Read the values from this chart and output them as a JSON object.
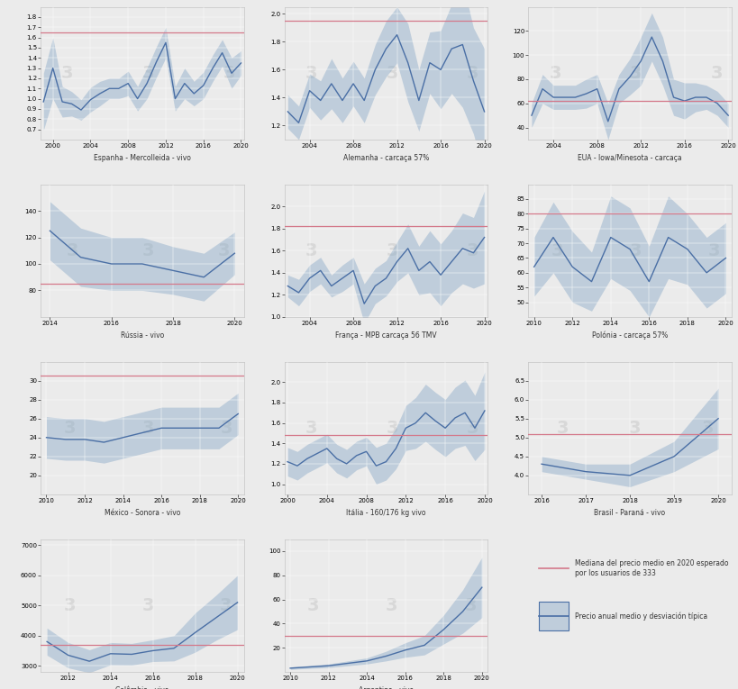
{
  "background_color": "#ebebeb",
  "panel_bg": "#ebebeb",
  "watermark_text": "3",
  "watermark_color": "#d0d0d0",
  "line_color": "#4a6fa5",
  "fill_color": "#8aaac8",
  "median_color": "#d4788a",
  "fill_alpha": 0.45,
  "panels": [
    {
      "title": "Espanha - Mercolleida - vivo",
      "flag": "ES",
      "flag_color1": "#c60b1e",
      "flag_color2": "#f1bf00",
      "years": [
        1999,
        2000,
        2001,
        2002,
        2003,
        2004,
        2005,
        2006,
        2007,
        2008,
        2009,
        2010,
        2011,
        2012,
        2013,
        2014,
        2015,
        2016,
        2017,
        2018,
        2019,
        2020
      ],
      "mean": [
        0.97,
        1.3,
        0.97,
        0.95,
        0.89,
        0.99,
        1.05,
        1.1,
        1.1,
        1.15,
        1.0,
        1.15,
        1.36,
        1.55,
        1.0,
        1.15,
        1.05,
        1.13,
        1.3,
        1.45,
        1.25,
        1.35
      ],
      "std": [
        0.28,
        0.3,
        0.15,
        0.12,
        0.1,
        0.12,
        0.12,
        0.1,
        0.1,
        0.12,
        0.12,
        0.15,
        0.15,
        0.15,
        0.12,
        0.15,
        0.12,
        0.13,
        0.13,
        0.13,
        0.15,
        0.12
      ],
      "median_line": 1.65,
      "ylim": [
        0.6,
        1.9
      ],
      "ytick_min": 0.7,
      "ytick_max": 1.8,
      "ytick_step": 0.1,
      "xtick_step": 4
    },
    {
      "title": "Alemanha - carcaça 57%",
      "flag": "DE",
      "flag_color1": "#000000",
      "flag_color2": "#dd0000",
      "years": [
        2002,
        2003,
        2004,
        2005,
        2006,
        2007,
        2008,
        2009,
        2010,
        2011,
        2012,
        2013,
        2014,
        2015,
        2016,
        2017,
        2018,
        2019,
        2020
      ],
      "mean": [
        1.3,
        1.22,
        1.45,
        1.38,
        1.5,
        1.38,
        1.5,
        1.38,
        1.6,
        1.75,
        1.85,
        1.65,
        1.38,
        1.65,
        1.6,
        1.75,
        1.78,
        1.52,
        1.3
      ],
      "std": [
        0.12,
        0.12,
        0.12,
        0.14,
        0.18,
        0.16,
        0.16,
        0.16,
        0.18,
        0.2,
        0.2,
        0.28,
        0.22,
        0.22,
        0.28,
        0.32,
        0.45,
        0.38,
        0.45
      ],
      "median_line": 1.95,
      "ylim": [
        1.1,
        2.05
      ],
      "ytick_min": 1.2,
      "ytick_max": 2.0,
      "ytick_step": 0.2,
      "xtick_step": 4
    },
    {
      "title": "EUA - Iowa/Minesota - carcaça",
      "flag": "US",
      "flag_color1": "#3c3b6e",
      "flag_color2": "#b22234",
      "years": [
        2002,
        2003,
        2004,
        2005,
        2006,
        2007,
        2008,
        2009,
        2010,
        2011,
        2012,
        2013,
        2014,
        2015,
        2016,
        2017,
        2018,
        2019,
        2020
      ],
      "mean": [
        50,
        72,
        65,
        65,
        65,
        68,
        72,
        45,
        72,
        82,
        95,
        115,
        95,
        65,
        62,
        65,
        65,
        60,
        50
      ],
      "std": [
        10,
        12,
        10,
        10,
        10,
        12,
        12,
        15,
        12,
        15,
        20,
        20,
        20,
        15,
        15,
        12,
        10,
        10,
        10
      ],
      "median_line": 62,
      "ylim": [
        30,
        140
      ],
      "ytick_min": 40,
      "ytick_max": 130,
      "ytick_step": 20,
      "xtick_step": 4
    },
    {
      "title": "Rússia - vivo",
      "flag": "RU",
      "flag_color1": "#003087",
      "flag_color2": "#d52b1e",
      "years": [
        2014,
        2015,
        2016,
        2017,
        2018,
        2019,
        2020
      ],
      "mean": [
        125,
        105,
        100,
        100,
        95,
        90,
        108
      ],
      "std": [
        22,
        22,
        20,
        20,
        18,
        18,
        16
      ],
      "median_line": 85,
      "ylim": [
        60,
        160
      ],
      "ytick_min": 80,
      "ytick_max": 150,
      "ytick_step": 20,
      "xtick_step": 2
    },
    {
      "title": "França - MPB carcaça 56 TMV",
      "flag": "FR",
      "flag_color1": "#002395",
      "flag_color2": "#ed2939",
      "years": [
        2002,
        2003,
        2004,
        2005,
        2006,
        2007,
        2008,
        2009,
        2010,
        2011,
        2012,
        2013,
        2014,
        2015,
        2016,
        2017,
        2018,
        2019,
        2020
      ],
      "mean": [
        1.28,
        1.22,
        1.35,
        1.42,
        1.28,
        1.35,
        1.42,
        1.12,
        1.28,
        1.35,
        1.5,
        1.62,
        1.42,
        1.5,
        1.38,
        1.5,
        1.62,
        1.58,
        1.72
      ],
      "std": [
        0.1,
        0.12,
        0.12,
        0.12,
        0.1,
        0.12,
        0.12,
        0.18,
        0.16,
        0.16,
        0.18,
        0.22,
        0.22,
        0.28,
        0.28,
        0.28,
        0.32,
        0.32,
        0.42
      ],
      "median_line": 1.82,
      "ylim": [
        1.0,
        2.2
      ],
      "ytick_min": 1.0,
      "ytick_max": 2.0,
      "ytick_step": 0.2,
      "xtick_step": 4
    },
    {
      "title": "Polónia - carcaça 57%",
      "flag": "PL",
      "flag_color1": "#dc143c",
      "flag_color2": "#ffffff",
      "years": [
        2010,
        2011,
        2012,
        2013,
        2014,
        2015,
        2016,
        2017,
        2018,
        2019,
        2020
      ],
      "mean": [
        62,
        72,
        62,
        57,
        72,
        68,
        57,
        72,
        68,
        60,
        65
      ],
      "std": [
        10,
        12,
        12,
        10,
        14,
        14,
        12,
        14,
        12,
        12,
        12
      ],
      "median_line": 80,
      "ylim": [
        45,
        90
      ],
      "ytick_min": 50,
      "ytick_max": 85,
      "ytick_step": 5,
      "xtick_step": 2
    },
    {
      "title": "México - Sonora - vivo",
      "flag": "MX",
      "flag_color1": "#006847",
      "flag_color2": "#ce1126",
      "years": [
        2010,
        2011,
        2012,
        2013,
        2014,
        2015,
        2016,
        2017,
        2018,
        2019,
        2020
      ],
      "mean": [
        24.0,
        23.8,
        23.8,
        23.5,
        24.0,
        24.5,
        25.0,
        25.0,
        25.0,
        25.0,
        26.5
      ],
      "std": [
        2.2,
        2.2,
        2.2,
        2.2,
        2.2,
        2.2,
        2.2,
        2.2,
        2.2,
        2.2,
        2.2
      ],
      "median_line": 30.5,
      "ylim": [
        18,
        32
      ],
      "ytick_min": 20,
      "ytick_max": 30,
      "ytick_step": 2,
      "xtick_step": 2
    },
    {
      "title": "Itália - 160/176 kg vivo",
      "flag": "IT",
      "flag_color1": "#009246",
      "flag_color2": "#ce2b37",
      "years": [
        2000,
        2001,
        2002,
        2003,
        2004,
        2005,
        2006,
        2007,
        2008,
        2009,
        2010,
        2011,
        2012,
        2013,
        2014,
        2015,
        2016,
        2017,
        2018,
        2019,
        2020
      ],
      "mean": [
        1.22,
        1.18,
        1.25,
        1.3,
        1.35,
        1.25,
        1.2,
        1.28,
        1.32,
        1.18,
        1.22,
        1.35,
        1.55,
        1.6,
        1.7,
        1.62,
        1.55,
        1.65,
        1.7,
        1.55,
        1.72
      ],
      "std": [
        0.14,
        0.14,
        0.14,
        0.14,
        0.14,
        0.14,
        0.14,
        0.14,
        0.14,
        0.18,
        0.18,
        0.2,
        0.22,
        0.25,
        0.28,
        0.28,
        0.28,
        0.3,
        0.32,
        0.32,
        0.38
      ],
      "median_line": 1.48,
      "ylim": [
        0.9,
        2.2
      ],
      "ytick_min": 1.0,
      "ytick_max": 2.0,
      "ytick_step": 0.2,
      "xtick_step": 4
    },
    {
      "title": "Brasil - Paraná - vivo",
      "flag": "BR",
      "flag_color1": "#009c3b",
      "flag_color2": "#ffdf00",
      "years": [
        2016,
        2017,
        2018,
        2019,
        2020
      ],
      "mean": [
        4.3,
        4.1,
        4.0,
        4.5,
        5.5
      ],
      "std": [
        0.2,
        0.2,
        0.3,
        0.4,
        0.8
      ],
      "median_line": 5.1,
      "ylim": [
        3.5,
        7.0
      ],
      "ytick_min": 4.0,
      "ytick_max": 6.5,
      "ytick_step": 0.5,
      "xtick_step": 1
    },
    {
      "title": "Colômbia - vivo",
      "flag": "CO",
      "flag_color1": "#fcd116",
      "flag_color2": "#003087",
      "years": [
        2011,
        2012,
        2013,
        2014,
        2015,
        2016,
        2017,
        2018,
        2019,
        2020
      ],
      "mean": [
        3800,
        3350,
        3150,
        3400,
        3380,
        3500,
        3580,
        4100,
        4600,
        5100
      ],
      "std": [
        450,
        420,
        380,
        370,
        360,
        360,
        420,
        650,
        750,
        900
      ],
      "median_line": 3700,
      "ylim": [
        2800,
        7200
      ],
      "ytick_min": 3000,
      "ytick_max": 7000,
      "ytick_step": 1000,
      "xtick_step": 2
    },
    {
      "title": "Argentina - vivo",
      "flag": "AR",
      "flag_color1": "#74acdf",
      "flag_color2": "#ffffff",
      "years": [
        2010,
        2011,
        2012,
        2013,
        2014,
        2015,
        2016,
        2017,
        2018,
        2019,
        2020
      ],
      "mean": [
        3,
        4,
        5,
        7,
        9,
        13,
        18,
        22,
        35,
        50,
        70
      ],
      "std": [
        1,
        1.2,
        1.5,
        2,
        2.5,
        4,
        6,
        8,
        12,
        18,
        25
      ],
      "median_line": 30,
      "ylim": [
        0,
        110
      ],
      "ytick_min": 20,
      "ytick_max": 100,
      "ytick_step": 20,
      "xtick_step": 2
    }
  ],
  "legend_median_label": "Mediana del precio medio en 2020 esperado por los usuarios de 333",
  "legend_band_label": "Precio anual medio y desviación típica"
}
